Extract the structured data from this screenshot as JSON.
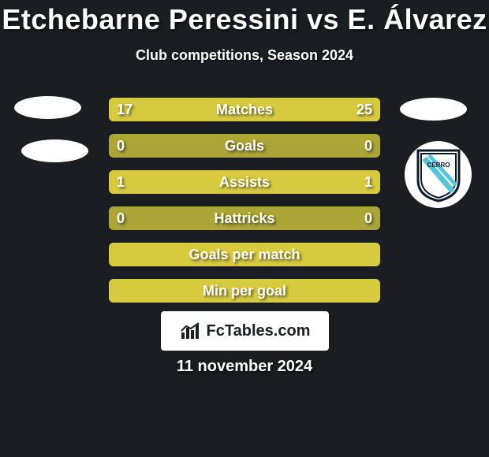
{
  "colors": {
    "page_bg": "#1a1d22",
    "text": "#ffffff",
    "badge": "#ffffff",
    "bar_track": "#aca538",
    "bar_fill": "#d6ca3f",
    "brand_box_bg": "#ffffff",
    "brand_text": "#1a1d22"
  },
  "header": {
    "title": "Etchebarne Peressini vs E. Álvarez",
    "subtitle": "Club competitions, Season 2024"
  },
  "rows": [
    {
      "label": "Matches",
      "left": "17",
      "right": "25",
      "left_pct": 40.5,
      "right_pct": 59.5
    },
    {
      "label": "Goals",
      "left": "0",
      "right": "0",
      "left_pct": 0,
      "right_pct": 0
    },
    {
      "label": "Assists",
      "left": "1",
      "right": "1",
      "left_pct": 50,
      "right_pct": 50
    },
    {
      "label": "Hattricks",
      "left": "0",
      "right": "0",
      "left_pct": 0,
      "right_pct": 0
    },
    {
      "label": "Goals per match",
      "left": "",
      "right": "",
      "left_pct": 100,
      "right_pct": 0,
      "full": true
    },
    {
      "label": "Min per goal",
      "left": "",
      "right": "",
      "left_pct": 100,
      "right_pct": 0,
      "full": true
    }
  ],
  "brand": "FcTables.com",
  "date": "11 november 2024",
  "club_badge_label": "CERRO"
}
